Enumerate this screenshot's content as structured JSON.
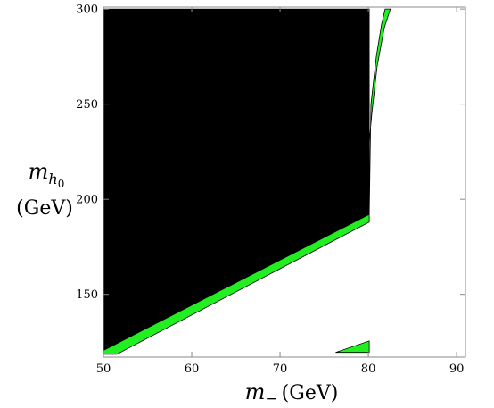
{
  "chart_data": {
    "type": "area",
    "title": "",
    "xlabel": {
      "symbol": "m",
      "subscript": "−",
      "unit": "(GeV)"
    },
    "ylabel": {
      "symbol": "m",
      "subscript": "h",
      "subsubscript": "0",
      "unit": "(GeV)"
    },
    "xlim": [
      50,
      91
    ],
    "ylim": [
      117,
      301
    ],
    "x_ticks": [
      50,
      60,
      70,
      80,
      90
    ],
    "y_ticks": [
      150,
      200,
      250,
      300
    ],
    "grid": false,
    "colors": {
      "excluded": "#000000",
      "allowed_band": "#22ee22",
      "outline": "#000000"
    },
    "regions": [
      {
        "name": "excluded",
        "color": "#000000",
        "points": [
          [
            50,
            300
          ],
          [
            80.1,
            300
          ],
          [
            80.1,
            192
          ],
          [
            50,
            120.5
          ]
        ]
      },
      {
        "name": "allowed-band-lower",
        "color": "#22ee22",
        "points": [
          [
            50,
            120.5
          ],
          [
            80.1,
            192
          ],
          [
            80.1,
            188
          ],
          [
            51.5,
            118.5
          ],
          [
            50,
            118.5
          ]
        ]
      },
      {
        "name": "allowed-band-upper",
        "color": "#22ee22",
        "points": [
          [
            80.1,
            192
          ],
          [
            80.3,
            250
          ],
          [
            80.9,
            275
          ],
          [
            81.5,
            292
          ],
          [
            81.9,
            300
          ],
          [
            82.5,
            300
          ],
          [
            81.8,
            290
          ],
          [
            81.0,
            270
          ],
          [
            80.4,
            245
          ],
          [
            80.1,
            230
          ]
        ]
      },
      {
        "name": "allowed-band-small",
        "color": "#22ee22",
        "points": [
          [
            76.3,
            119.5
          ],
          [
            80.1,
            125.5
          ],
          [
            80.1,
            119.5
          ]
        ]
      }
    ]
  }
}
